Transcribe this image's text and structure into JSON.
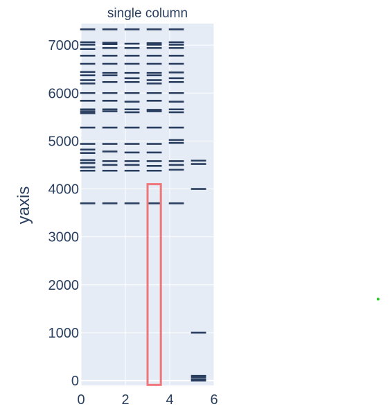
{
  "chart_data": {
    "type": "scatter",
    "title": "single column",
    "xlabel": "",
    "ylabel": "yaxis",
    "xlim": [
      0,
      6
    ],
    "ylim": [
      -100,
      7450
    ],
    "x_ticks": [
      "0",
      "2",
      "4",
      "6"
    ],
    "y_ticks": [
      "0",
      "1000",
      "2000",
      "3000",
      "4000",
      "5000",
      "6000",
      "7000"
    ],
    "grid": true,
    "legend": "none",
    "colors": {
      "bands": "#2a3f5f",
      "plot_bg": "#e5ecf6",
      "highlight": "#ef767a",
      "dot": "#22cc22"
    },
    "lanes": [
      {
        "x": 0.3,
        "values": [
          3700,
          4380,
          4450,
          4540,
          4600,
          4750,
          4820,
          4940,
          5280,
          5580,
          5620,
          5660,
          5840,
          6000,
          6200,
          6270,
          6370,
          6440,
          6610,
          6780,
          6920,
          7010,
          7060,
          7330
        ]
      },
      {
        "x": 1.3,
        "values": [
          3700,
          4380,
          4500,
          4580,
          4780,
          4940,
          5280,
          5620,
          5660,
          5840,
          6000,
          6230,
          6370,
          6420,
          6610,
          6780,
          6940,
          7020,
          7050,
          7330
        ]
      },
      {
        "x": 2.3,
        "values": [
          3700,
          4380,
          4500,
          4580,
          4760,
          4940,
          5280,
          5600,
          5660,
          5820,
          6000,
          6230,
          6310,
          6420,
          6610,
          6780,
          6940,
          7030,
          7330
        ]
      },
      {
        "x": 3.3,
        "values": [
          3700,
          4380,
          4480,
          4580,
          4760,
          4940,
          5280,
          5620,
          5650,
          5840,
          6000,
          6200,
          6270,
          6370,
          6420,
          6610,
          6780,
          6940,
          7010,
          7040,
          7330
        ]
      },
      {
        "x": 4.3,
        "values": [
          3700,
          4400,
          4500,
          4580,
          4960,
          5020,
          5280,
          5600,
          5660,
          5820,
          6000,
          6230,
          6310,
          6430,
          6610,
          6780,
          6940,
          7010,
          7060,
          7330
        ]
      },
      {
        "x": 5.3,
        "values": [
          0,
          25,
          70,
          100,
          1000,
          4000,
          4520,
          4590
        ]
      }
    ],
    "highlight": {
      "x0": 3.0,
      "x1": 3.6,
      "y0": -90,
      "y1": 4100
    },
    "marker": {
      "x": 13.4,
      "y": 1700
    }
  }
}
